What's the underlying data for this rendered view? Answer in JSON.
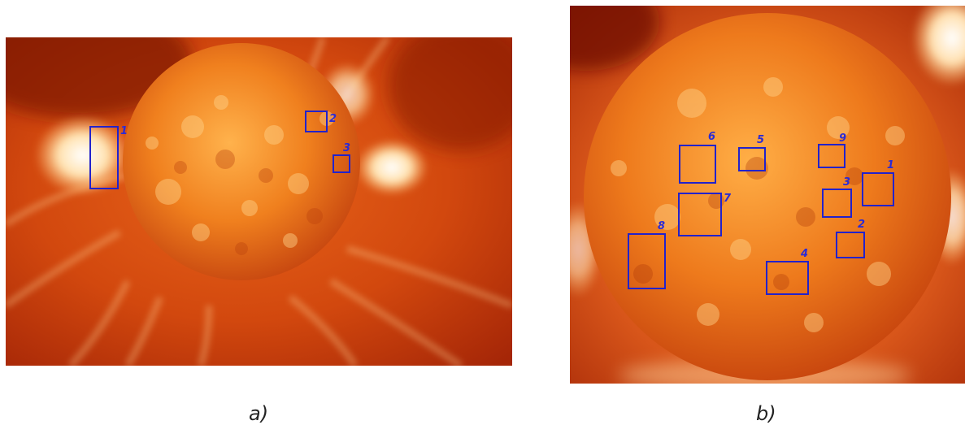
{
  "colors": {
    "box": "#2222cc",
    "label": "#2b2bd6",
    "sun_core": "#ffb34a",
    "sun_mid": "#f07a18",
    "sun_edge": "#c9420a",
    "corona_bright": "#fff6e6",
    "corona_dark": "#9e1d06"
  },
  "panels": [
    {
      "caption": "a)",
      "regions": [
        {
          "label": "1"
        },
        {
          "label": "2"
        },
        {
          "label": "3"
        }
      ]
    },
    {
      "caption": "b)",
      "regions": [
        {
          "label": "1"
        },
        {
          "label": "2"
        },
        {
          "label": "3"
        },
        {
          "label": "4"
        },
        {
          "label": "5"
        },
        {
          "label": "6"
        },
        {
          "label": "7"
        },
        {
          "label": "8"
        },
        {
          "label": "9"
        }
      ]
    }
  ]
}
